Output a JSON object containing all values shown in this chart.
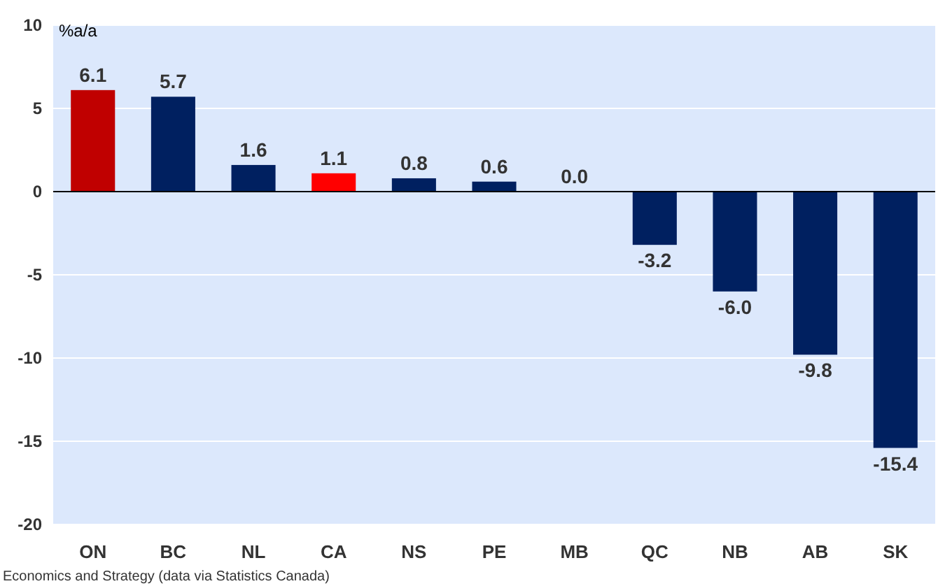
{
  "chart_data": {
    "type": "bar",
    "ylabel": "%a/a",
    "categories": [
      "ON",
      "BC",
      "NL",
      "CA",
      "NS",
      "PE",
      "MB",
      "QC",
      "NB",
      "AB",
      "SK"
    ],
    "values": [
      6.1,
      5.7,
      1.6,
      1.1,
      0.8,
      0.6,
      0.0,
      -3.2,
      -6.0,
      -9.8,
      -15.4
    ],
    "colors": [
      "#c00000",
      "#002060",
      "#002060",
      "#ff0000",
      "#002060",
      "#002060",
      "#002060",
      "#002060",
      "#002060",
      "#002060",
      "#002060"
    ],
    "value_labels": [
      "6.1",
      "5.7",
      "1.6",
      "1.1",
      "0.8",
      "0.6",
      "0.0",
      "-3.2",
      "-6.0",
      "-9.8",
      "-15.4"
    ],
    "ylim": [
      -20,
      10
    ],
    "yticks": [
      -20,
      -15,
      -10,
      -5,
      0,
      5,
      10
    ],
    "grid": "y",
    "annotations": [
      "Economics and Strategy (data via Statistics Canada)"
    ]
  }
}
